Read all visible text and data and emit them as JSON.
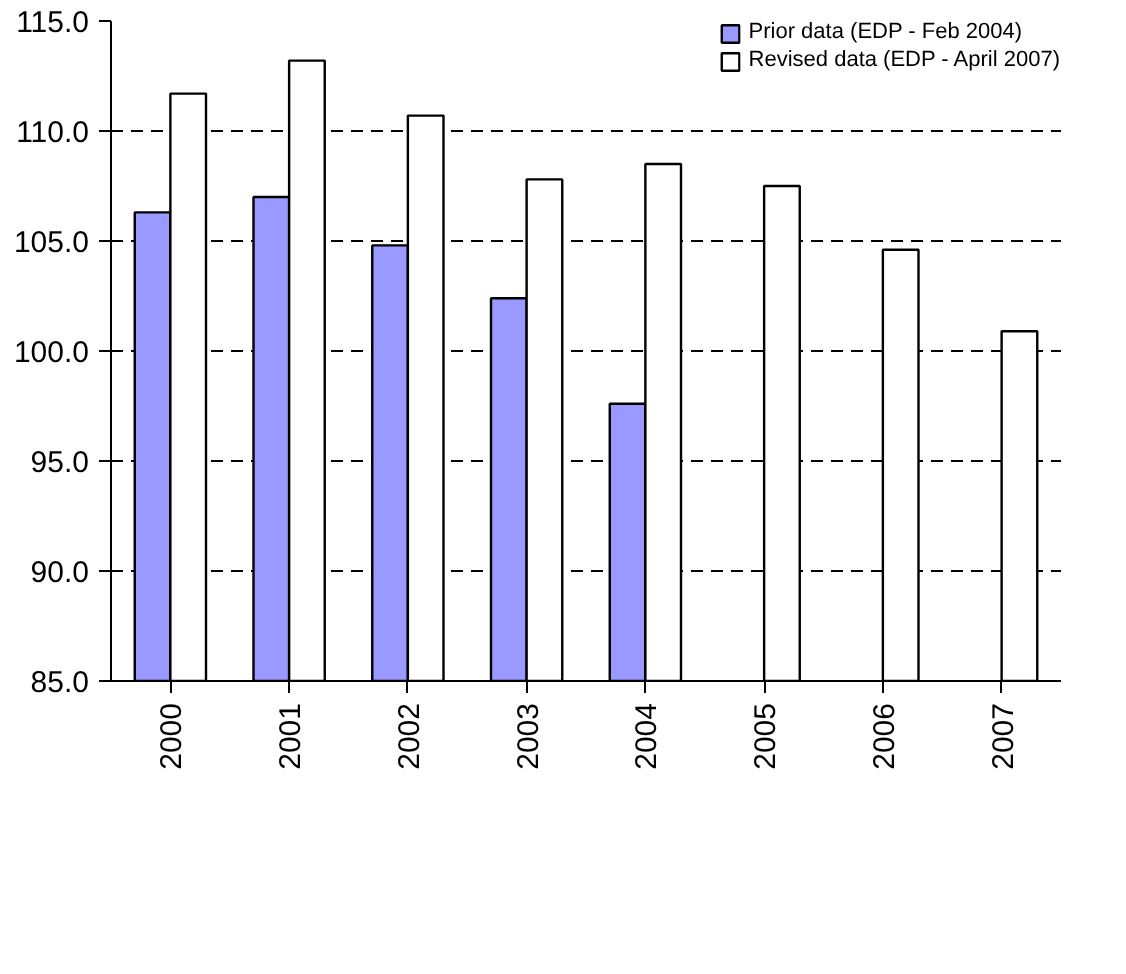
{
  "chart_data": {
    "type": "bar",
    "categories": [
      "2000",
      "2001",
      "2002",
      "2003",
      "2004",
      "2005",
      "2006",
      "2007"
    ],
    "series": [
      {
        "name": "Prior data (EDP - Feb 2004)",
        "color": "#9999ff",
        "values": [
          106.3,
          107.0,
          104.8,
          102.4,
          97.6,
          null,
          null,
          null
        ]
      },
      {
        "name": "Revised data (EDP - April 2007)",
        "color": "#ffffff",
        "values": [
          111.7,
          113.2,
          110.7,
          107.8,
          108.5,
          107.5,
          104.6,
          100.9
        ]
      }
    ],
    "ylim": [
      85,
      115
    ],
    "yticks": [
      {
        "value": 85,
        "label": "85.0"
      },
      {
        "value": 90,
        "label": "90.0"
      },
      {
        "value": 95,
        "label": "95.0"
      },
      {
        "value": 100,
        "label": "100.0"
      },
      {
        "value": 105,
        "label": "105.0"
      },
      {
        "value": 110,
        "label": "110.0"
      },
      {
        "value": 115,
        "label": "115.0"
      }
    ],
    "grid": "y",
    "legend": "top right"
  }
}
